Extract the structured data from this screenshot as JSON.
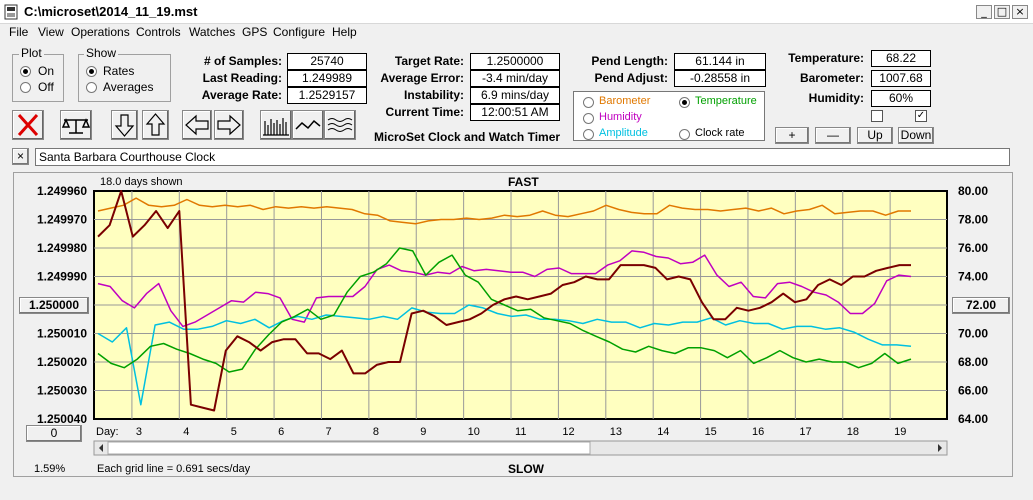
{
  "window": {
    "title": "C:\\microset\\2014_11_19.mst",
    "min_glyph": "_",
    "max_glyph": "□",
    "close_glyph": "×"
  },
  "menu": [
    "File",
    "View",
    "Operations",
    "Controls",
    "Watches",
    "GPS",
    "Configure",
    "Help"
  ],
  "plot_group": {
    "label": "Plot",
    "options": [
      "On",
      "Off"
    ],
    "selected": "On"
  },
  "show_group": {
    "label": "Show",
    "options": [
      "Rates",
      "Averages"
    ],
    "selected": "Rates"
  },
  "stats": {
    "samples_label": "# of Samples:",
    "samples": "25740",
    "last_label": "Last Reading:",
    "last": "1.249989",
    "avg_label": "Average Rate:",
    "avg": "1.2529157"
  },
  "rates": {
    "target_label": "Target Rate:",
    "target": "1.2500000",
    "error_label": "Average Error:",
    "error": "-3.4 min/day",
    "instab_label": "Instability:",
    "instab": "6.9 mins/day",
    "time_label": "Current Time:",
    "time": "12:00:51 AM"
  },
  "pend": {
    "length_label": "Pend Length:",
    "length": "61.144 in",
    "adjust_label": "Pend Adjust:",
    "adjust": "-0.28558 in"
  },
  "env": {
    "temp_label": "Temperature:",
    "temp": "68.22",
    "baro_label": "Barometer:",
    "baro": "1007.68",
    "hum_label": "Humidity:",
    "hum": "60%"
  },
  "app_label": "MicroSet Clock and Watch Timer",
  "channels": [
    {
      "label": "Barometer",
      "color": "#e07800",
      "selected": false
    },
    {
      "label": "Temperature",
      "color": "#00a000",
      "selected": true
    },
    {
      "label": "Humidity",
      "color": "#c000c0",
      "selected": false
    },
    {
      "label": "Clock rate",
      "color": "#000000",
      "selected": false
    },
    {
      "label": "Amplitude",
      "color": "#00c0e0",
      "selected": false
    }
  ],
  "scale_buttons": [
    "+",
    "—",
    "Up",
    "Down"
  ],
  "clock_name": "Santa Barbara Courthouse Clock",
  "chart_data": {
    "type": "line",
    "top_label": "FAST",
    "bottom_label": "SLOW",
    "days_shown": "18.0 days shown",
    "grid_note": "Each grid line = 0.691 secs/day",
    "pct": "1.59%",
    "x_lead": "Day:",
    "x_ticks": [
      "3",
      "4",
      "5",
      "6",
      "7",
      "8",
      "9",
      "10",
      "11",
      "12",
      "13",
      "14",
      "15",
      "16",
      "17",
      "18",
      "19"
    ],
    "x_range": [
      2.0,
      20.0
    ],
    "y_left_ticks": [
      "1.249960",
      "1.249970",
      "1.249980",
      "1.249990",
      "1.250000",
      "1.250010",
      "1.250020",
      "1.250030",
      "1.250040"
    ],
    "y_left_range": [
      1.24996,
      1.25004
    ],
    "y_right_ticks": [
      "80.00",
      "78.00",
      "76.00",
      "74.00",
      "72.00",
      "70.00",
      "68.00",
      "66.00",
      "64.00"
    ],
    "y_right_range": [
      80,
      64
    ],
    "left_box": "1.250000",
    "right_box": "72.00",
    "zero_btn": "0",
    "series": [
      {
        "color": "#e07800",
        "ys": [
          78.6,
          78.8,
          79.0,
          79.5,
          79.0,
          78.9,
          79.0,
          79.4,
          79.0,
          78.9,
          79.0,
          78.9,
          79.0,
          78.7,
          78.9,
          78.8,
          78.9,
          78.8,
          78.9,
          78.8,
          78.7,
          78.4,
          78.3,
          77.9,
          77.8,
          77.7,
          77.9,
          78.0,
          78.0,
          78.1,
          78.0,
          78.1,
          78.3,
          78.2,
          78.3,
          78.6,
          78.3,
          78.2,
          78.4,
          78.6,
          79.0,
          78.7,
          78.5,
          78.4,
          78.4,
          79.0,
          78.8,
          78.7,
          78.7,
          78.6,
          78.7,
          78.8,
          78.6,
          78.8,
          78.4,
          78.6,
          78.7,
          79.0,
          78.4,
          78.5,
          78.6,
          78.6,
          78.3,
          78.6,
          78.6
        ]
      },
      {
        "color": "#c000c0",
        "ys": [
          73.5,
          73.3,
          72.3,
          71.8,
          72.8,
          73.5,
          71.6,
          70.5,
          70.8,
          71.3,
          71.8,
          72.3,
          72.2,
          72.9,
          72.8,
          72.5,
          71.0,
          70.8,
          72.5,
          72.6,
          72.6,
          72.6,
          73.3,
          74.5,
          74.8,
          74.4,
          74.3,
          74.1,
          74.3,
          74.2,
          74.7,
          74.4,
          74.5,
          74.4,
          74.3,
          74.3,
          74.0,
          74.5,
          74.6,
          74.2,
          74.2,
          74.2,
          74.8,
          75.1,
          75.8,
          75.7,
          75.4,
          75.3,
          74.9,
          75.0,
          75.5,
          74.1,
          73.3,
          73.6,
          72.6,
          72.5,
          73.5,
          73.6,
          73.3,
          72.9,
          72.7,
          72.2,
          71.4,
          71.4,
          72.1,
          73.7,
          74.1,
          74.0
        ]
      },
      {
        "color": "#00c0e0",
        "ys": [
          70.0,
          69.4,
          70.4,
          65.0,
          70.6,
          70.8,
          70.3,
          70.3,
          70.5,
          70.9,
          70.7,
          71.0,
          70.4,
          70.9,
          71.2,
          71.0,
          71.3,
          71.2,
          71.1,
          71.0,
          71.2,
          71.0,
          71.8,
          71.5,
          71.4,
          71.4,
          72.0,
          71.8,
          71.4,
          71.2,
          71.3,
          71.0,
          71.0,
          70.9,
          70.7,
          71.0,
          70.8,
          70.8,
          70.4,
          70.7,
          70.6,
          70.8,
          70.8,
          71.1,
          70.6,
          70.9,
          70.7,
          70.7,
          70.3,
          70.5,
          70.5,
          70.3,
          70.4,
          70.1,
          69.6,
          69.2,
          69.2,
          69.1
        ]
      },
      {
        "color": "#00a000",
        "ys": [
          68.6,
          67.9,
          67.6,
          68.2,
          69.1,
          69.3,
          68.9,
          68.6,
          68.2,
          67.9,
          67.3,
          67.5,
          68.9,
          69.9,
          70.8,
          71.2,
          71.7,
          71.0,
          71.3,
          72.9,
          74.0,
          74.3,
          74.9,
          76.0,
          75.8,
          74.1,
          75.0,
          75.5,
          74.1,
          73.6,
          72.4,
          72.0,
          71.6,
          71.7,
          71.1,
          70.9,
          70.7,
          70.2,
          69.8,
          69.4,
          68.9,
          68.7,
          69.1,
          68.8,
          68.6,
          69.0,
          69.0,
          68.8,
          68.3,
          68.8,
          67.9,
          68.3,
          68.8,
          68.3,
          68.0,
          68.2,
          68.0,
          68.0,
          67.6,
          67.9,
          68.6,
          67.9,
          68.2
        ]
      },
      {
        "color": "#7a0000",
        "ys": [
          1.249976,
          1.249972,
          1.249959,
          1.249976,
          1.249972,
          1.249967,
          1.249973,
          1.249967,
          1.250035,
          1.250036,
          1.250037,
          1.250016,
          1.250011,
          1.250013,
          1.250016,
          1.250013,
          1.250012,
          1.250012,
          1.250017,
          1.250017,
          1.250019,
          1.250016,
          1.250024,
          1.250024,
          1.250021,
          1.25002,
          1.25002,
          1.250003,
          1.250002,
          1.250004,
          1.250007,
          1.250006,
          1.250005,
          1.250003,
          1.25,
          1.249998,
          1.249997,
          1.249998,
          1.249997,
          1.249996,
          1.249993,
          1.249992,
          1.24999,
          1.249991,
          1.249991,
          1.249986,
          1.249986,
          1.249986,
          1.249987,
          1.249991,
          1.24999,
          1.249991,
          1.249999,
          1.250005,
          1.250005,
          1.250001,
          1.250002,
          1.250001,
          1.249999,
          1.249996,
          1.249999,
          1.249998,
          1.249993,
          1.249991,
          1.249993,
          1.24999,
          1.24999,
          1.249988,
          1.249987,
          1.249986,
          1.249986
        ]
      }
    ]
  }
}
